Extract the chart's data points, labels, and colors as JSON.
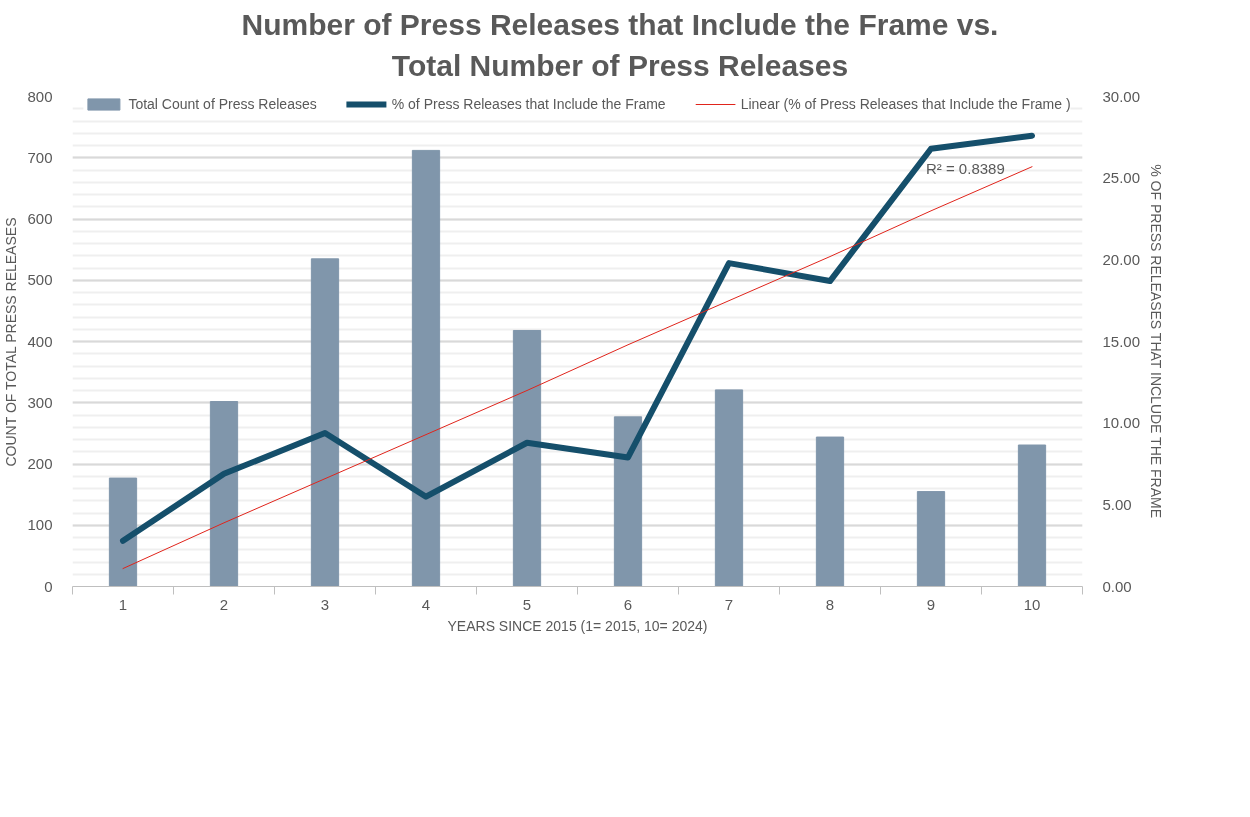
{
  "chart_data": {
    "type": "bar",
    "title": "Number of Press Releases that Include the  Frame vs.\nTotal Number of Press Releases",
    "xlabel": "YEARS SINCE 2015 (1= 2015, 10= 2024)",
    "ylabel": "COUNT OF TOTAL PRESS RELEASES",
    "y2label": "% OF PRESS RELEASES THAT INCLUDE THE FRAME",
    "categories": [
      "1",
      "2",
      "3",
      "4",
      "5",
      "6",
      "7",
      "8",
      "9",
      "10"
    ],
    "series": [
      {
        "name": "Total Count of Press Releases",
        "color": "#8096ab",
        "values": [
          177,
          302,
          535,
          712,
          418,
          277,
          321,
          244,
          155,
          231
        ]
      },
      {
        "name": "% of Press Releases that Include the Frame",
        "type": "line",
        "axis": "y2",
        "color": "#154f6b",
        "values": [
          2.8,
          6.9,
          9.4,
          5.5,
          8.8,
          7.9,
          19.8,
          18.7,
          26.8,
          27.6
        ]
      },
      {
        "name": "Linear (% of Press Releases that Include the Frame )",
        "type": "line",
        "axis": "y2",
        "color": "#e0241b",
        "values": [
          1.1,
          3.9,
          6.6,
          9.3,
          12.0,
          14.8,
          17.5,
          20.2,
          23.0,
          25.7
        ]
      }
    ],
    "ylim": [
      0,
      800
    ],
    "yticks": [
      0,
      100,
      200,
      300,
      400,
      500,
      600,
      700,
      800
    ],
    "y2lim": [
      0,
      30
    ],
    "y2ticks": [
      {
        "value": 0,
        "label": "0.00"
      },
      {
        "value": 5,
        "label": "5.00"
      },
      {
        "value": 10,
        "label": "10.00"
      },
      {
        "value": 15,
        "label": "15.00"
      },
      {
        "value": 20,
        "label": "20.00"
      },
      {
        "value": 25,
        "label": "25.00"
      },
      {
        "value": 30,
        "label": "30.00"
      }
    ],
    "annotations": [
      "R² = 0.8389"
    ],
    "grid": "y",
    "legend": "top"
  }
}
